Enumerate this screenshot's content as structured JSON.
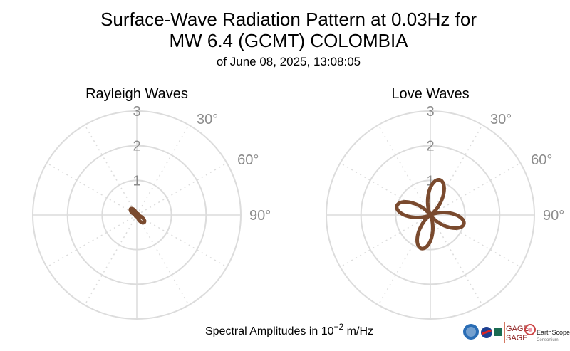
{
  "header": {
    "title_line1": "Surface-Wave Radiation Pattern at 0.03Hz for",
    "title_line2": "MW 6.4 (GCMT) COLOMBIA",
    "subtitle": "of June 08, 2025, 13:08:05"
  },
  "footer": {
    "amplitude_prefix": "Spectral Amplitudes in 10",
    "amplitude_exponent": "−2",
    "amplitude_unit": " m/Hz"
  },
  "logos": {
    "gage": "GAGE",
    "sage": "SAGE",
    "earthscope": "EarthScope",
    "consortium": "Consortium"
  },
  "colors": {
    "pattern": "#7a4a2e",
    "grid": "#dcdcdc",
    "tick_text": "#8c8c8c"
  },
  "chart_data": [
    {
      "type": "polar",
      "title": "Rayleigh Waves",
      "radial_ticks": [
        1,
        2,
        3
      ],
      "radial_tick_labels": [
        "1",
        "2",
        "3"
      ],
      "rlim": [
        0,
        3
      ],
      "angle_tick_labels": [
        "30°",
        "60°",
        "90°"
      ],
      "angular_grid_step_deg": 30,
      "grid": true,
      "series": [
        {
          "values_kind": "four-lobe",
          "lobes": [
            {
              "azimuth_deg": 315,
              "amplitude": 0.25
            },
            {
              "azimuth_deg": 135,
              "amplitude": 0.3
            },
            {
              "azimuth_deg": 45,
              "amplitude": 0.05
            },
            {
              "azimuth_deg": 225,
              "amplitude": 0.05
            }
          ]
        }
      ]
    },
    {
      "type": "polar",
      "title": "Love Waves",
      "radial_ticks": [
        1,
        2,
        3
      ],
      "radial_tick_labels": [
        "1",
        "2",
        "3"
      ],
      "rlim": [
        0,
        3
      ],
      "angle_tick_labels": [
        "30°",
        "60°",
        "90°"
      ],
      "angular_grid_step_deg": 30,
      "grid": true,
      "series": [
        {
          "values_kind": "four-lobe",
          "lobes": [
            {
              "azimuth_deg": 15,
              "amplitude": 1.05
            },
            {
              "azimuth_deg": 105,
              "amplitude": 1.0
            },
            {
              "azimuth_deg": 195,
              "amplitude": 1.0
            },
            {
              "azimuth_deg": 285,
              "amplitude": 1.0
            }
          ]
        }
      ]
    }
  ]
}
